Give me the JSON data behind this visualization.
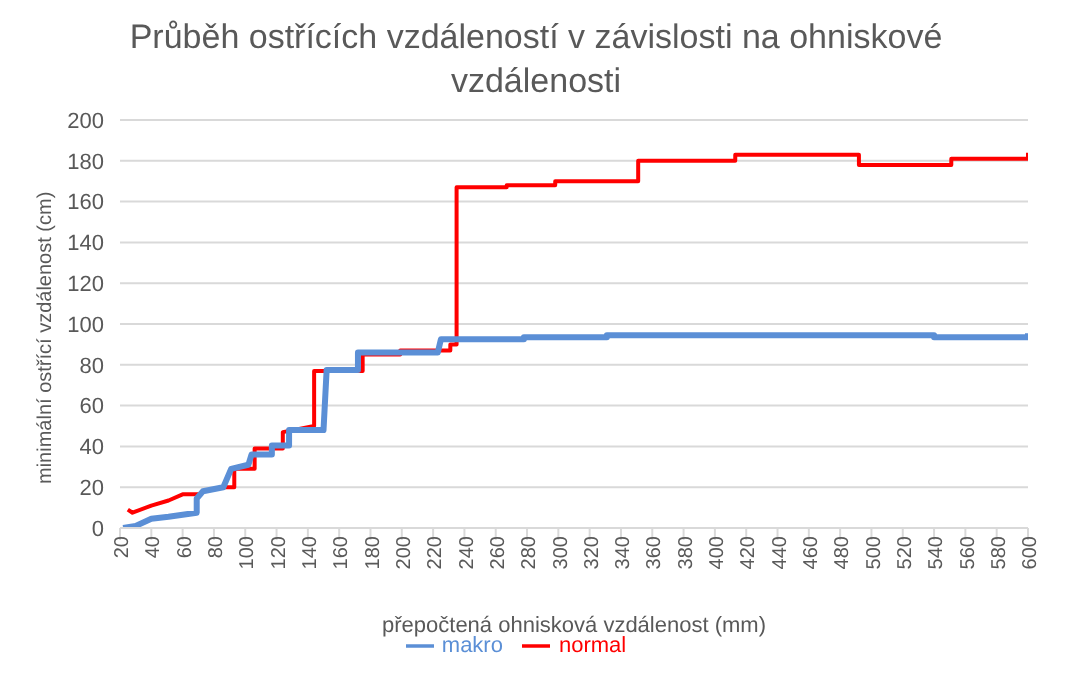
{
  "chart_data": {
    "type": "line",
    "title": "Průběh ostřících vzdáleností v závislosti na ohniskové vzdálenosti",
    "xlabel": "přepočtená ohnisková vzdálenost (mm)",
    "ylabel": "minimální ostřící vzdálenost (cm)",
    "xlim": [
      20,
      600
    ],
    "xticks": [
      20,
      40,
      60,
      80,
      100,
      120,
      140,
      160,
      180,
      200,
      220,
      240,
      260,
      280,
      300,
      320,
      340,
      360,
      380,
      400,
      420,
      440,
      460,
      480,
      500,
      520,
      540,
      560,
      580,
      600
    ],
    "ylim": [
      0,
      200
    ],
    "yticks": [
      0,
      20,
      40,
      60,
      80,
      100,
      120,
      140,
      160,
      180,
      200
    ],
    "grid": "y",
    "legend": "bottom",
    "marker": "none",
    "line_style": "solid",
    "series": [
      {
        "name": "normal",
        "color": "#ff0000",
        "x": [
          25,
          28,
          40,
          51,
          60,
          71,
          73,
          86,
          93,
          93,
          106,
          106,
          124,
          124,
          144,
          144,
          148,
          175,
          175,
          199,
          199,
          231,
          231,
          235,
          235,
          267,
          267,
          298,
          298,
          351,
          351,
          413,
          413,
          492,
          492,
          551,
          551,
          600,
          600
        ],
        "values": [
          9,
          7.5,
          11,
          13.5,
          16.5,
          16.5,
          18,
          20,
          20,
          29,
          29,
          39,
          39,
          47,
          50,
          77,
          77,
          77,
          85,
          85,
          87,
          87,
          90,
          90,
          167,
          167,
          168,
          168,
          170,
          170,
          180,
          180,
          183,
          183,
          178,
          178,
          181,
          181,
          184
        ]
      },
      {
        "name": "makro",
        "color": "#5b8fd6",
        "x": [
          22,
          30,
          40,
          51,
          69,
          69,
          73,
          86,
          91,
          102,
          104,
          117,
          117,
          128,
          128,
          150,
          152,
          172,
          172,
          223,
          225,
          278,
          278,
          331,
          331,
          540,
          540,
          600,
          600
        ],
        "values": [
          0,
          1,
          4.5,
          5.5,
          7.5,
          14.5,
          18,
          20,
          29,
          31,
          36,
          36,
          40.5,
          40.5,
          48,
          48,
          77.5,
          77.5,
          86,
          86,
          92.5,
          92.5,
          93.5,
          93.5,
          94.5,
          94.5,
          93.5,
          93.5,
          95.5
        ]
      }
    ]
  }
}
